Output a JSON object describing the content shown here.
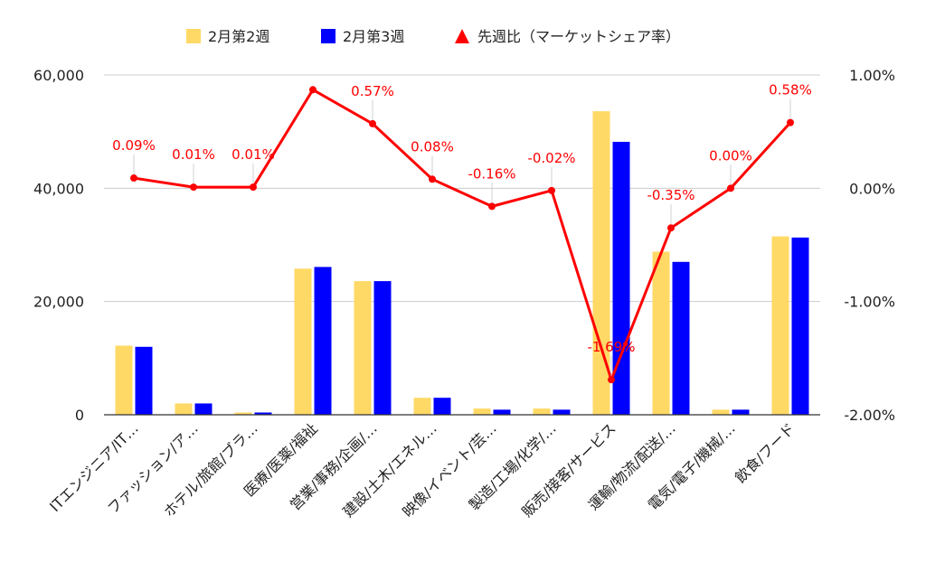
{
  "chart_data": {
    "type": "bar",
    "categories": [
      "ITエンジニア/IT…",
      "ファッション/ア…",
      "ホテル/旅館/ブラ…",
      "医療/医薬/福祉",
      "営業/事務/企画/…",
      "建設/土木/エネル…",
      "映像/イベント/芸…",
      "製造/工場/化学/…",
      "販売/接客/サービス",
      "運輸/物流/配送/…",
      "電気/電子/機械/…",
      "飲食/フード"
    ],
    "series": [
      {
        "name": "2月第2週",
        "type": "bar",
        "axis": "left",
        "color": "#ffd966",
        "values": [
          12200,
          2000,
          400,
          25800,
          23600,
          3000,
          1100,
          1100,
          53600,
          28800,
          900,
          31500
        ]
      },
      {
        "name": "2月第3週",
        "type": "bar",
        "axis": "left",
        "color": "#0000ff",
        "values": [
          12000,
          2000,
          400,
          26100,
          23600,
          3000,
          900,
          900,
          48200,
          27000,
          900,
          31300
        ]
      },
      {
        "name": "先週比（マーケットシェア率）",
        "type": "line",
        "axis": "right",
        "color": "#ff0000",
        "values": [
          0.09,
          0.01,
          0.01,
          0.87,
          0.57,
          0.08,
          -0.16,
          -0.02,
          -1.69,
          -0.35,
          0.0,
          0.58
        ],
        "labels": [
          "0.09%",
          "0.01%",
          "0.01%",
          "",
          "0.57%",
          "0.08%",
          "-0.16%",
          "-0.02%",
          "-1.69%",
          "-0.35%",
          "0.00%",
          "0.58%"
        ]
      }
    ],
    "y_left": {
      "ylim": [
        0,
        60000
      ],
      "ticks": [
        0,
        20000,
        40000,
        60000
      ],
      "tick_labels": [
        "0",
        "20,000",
        "40,000",
        "60,000"
      ]
    },
    "y_right": {
      "ylim": [
        -2.0,
        1.0
      ],
      "ticks": [
        -2.0,
        -1.0,
        0.0,
        1.0
      ],
      "tick_labels": [
        "-2.00%",
        "-1.00%",
        "0.00%",
        "1.00%"
      ]
    },
    "grid": true,
    "legend_position": "top-center",
    "title": "",
    "xlabel": "",
    "ylabel": ""
  }
}
